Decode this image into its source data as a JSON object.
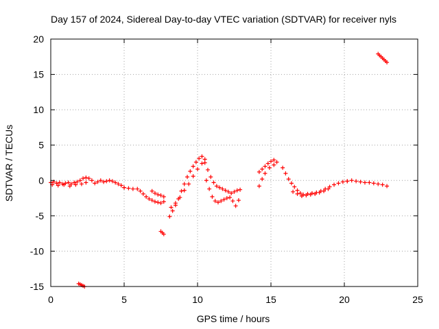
{
  "chart_data": {
    "type": "scatter",
    "title": "Day 157 of 2024, Sidereal Day-to-day VTEC variation (SDTVAR) for receiver nyls",
    "xlabel": "GPS time / hours",
    "ylabel": "SDTVAR / TECUs",
    "xlim": [
      0,
      25
    ],
    "ylim": [
      -15,
      20
    ],
    "xticks": [
      0,
      5,
      10,
      15,
      20,
      25
    ],
    "yticks": [
      -15,
      -10,
      -5,
      0,
      5,
      10,
      15,
      20
    ],
    "xtick_labels": [
      "0",
      "5",
      "10",
      "15",
      "20",
      "25"
    ],
    "ytick_labels": [
      "-15",
      "-10",
      "-5",
      "0",
      "5",
      "10",
      "15",
      "20"
    ],
    "grid": true,
    "marker": "plus",
    "color": "#ff0000",
    "series": [
      {
        "name": "seg-0-2.5",
        "x": [
          0.0,
          0.2,
          0.4,
          0.6,
          0.8,
          1.0,
          1.2,
          1.4,
          1.6,
          1.8,
          2.0,
          2.2,
          2.4
        ],
        "y": [
          -0.3,
          -0.2,
          -0.4,
          -0.3,
          -0.5,
          -0.4,
          -0.3,
          -0.5,
          -0.3,
          -0.2,
          0.0,
          0.3,
          0.4
        ]
      },
      {
        "name": "seg-0-2.5b",
        "x": [
          0.1,
          0.5,
          0.9,
          1.3,
          1.7,
          2.1,
          2.4
        ],
        "y": [
          -0.6,
          -0.7,
          -0.6,
          -0.8,
          -0.6,
          -0.5,
          -0.3
        ]
      },
      {
        "name": "seg-2.5-5",
        "x": [
          2.6,
          2.8,
          3.0,
          3.2,
          3.4,
          3.6,
          3.8,
          4.0,
          4.2,
          4.4,
          4.6,
          4.8,
          5.0
        ],
        "y": [
          0.3,
          0.0,
          -0.4,
          -0.2,
          0.0,
          -0.2,
          -0.1,
          0.0,
          -0.1,
          -0.3,
          -0.5,
          -0.7,
          -1.0
        ]
      },
      {
        "name": "seg-5-7.5",
        "x": [
          5.0,
          5.3,
          5.6,
          5.9,
          6.1,
          6.3,
          6.5,
          6.7,
          6.9,
          7.1,
          7.3,
          7.5,
          7.7
        ],
        "y": [
          -1.0,
          -1.1,
          -1.2,
          -1.2,
          -1.5,
          -1.9,
          -2.3,
          -2.6,
          -2.8,
          -3.0,
          -3.1,
          -3.2,
          -3.0
        ]
      },
      {
        "name": "seg-7-7.8",
        "x": [
          6.9,
          7.1,
          7.3,
          7.5,
          7.7
        ],
        "y": [
          -1.5,
          -1.8,
          -2.0,
          -2.1,
          -2.3
        ]
      },
      {
        "name": "seg-8-10.3-up",
        "x": [
          8.1,
          8.3,
          8.5,
          8.7,
          8.9,
          9.1,
          9.3,
          9.5,
          9.7,
          9.9,
          10.1,
          10.3,
          10.5
        ],
        "y": [
          -5.1,
          -4.3,
          -3.5,
          -2.6,
          -1.5,
          -0.5,
          0.5,
          1.3,
          2.0,
          2.6,
          3.1,
          3.4,
          3.0
        ]
      },
      {
        "name": "seg-8-10.3-up-b",
        "x": [
          8.2,
          8.5,
          8.8,
          9.1,
          9.4,
          9.7,
          10.0,
          10.3
        ],
        "y": [
          -3.8,
          -3.2,
          -2.4,
          -1.4,
          -0.5,
          0.6,
          1.6,
          2.4
        ]
      },
      {
        "name": "seg-10.3-13",
        "x": [
          10.5,
          10.7,
          10.9,
          11.1,
          11.3,
          11.5,
          11.7,
          11.9,
          12.1,
          12.3,
          12.5,
          12.7,
          12.9
        ],
        "y": [
          2.5,
          1.5,
          0.5,
          -0.3,
          -0.8,
          -1.0,
          -1.2,
          -1.4,
          -1.6,
          -1.8,
          -1.6,
          -1.4,
          -1.3
        ]
      },
      {
        "name": "seg-10.3-13-low",
        "x": [
          10.6,
          10.8,
          11.0,
          11.2,
          11.4,
          11.6,
          11.8,
          12.0,
          12.2,
          12.4,
          12.6,
          12.8
        ],
        "y": [
          0.0,
          -1.2,
          -2.3,
          -2.9,
          -3.1,
          -2.9,
          -2.7,
          -2.5,
          -2.4,
          -2.9,
          -3.6,
          -2.8
        ]
      },
      {
        "name": "seg-14-15.4",
        "x": [
          14.2,
          14.4,
          14.6,
          14.8,
          15.0,
          15.2,
          15.4
        ],
        "y": [
          1.2,
          1.6,
          2.0,
          2.4,
          2.7,
          2.9,
          2.6
        ]
      },
      {
        "name": "seg-14-15.4-b",
        "x": [
          14.2,
          14.4,
          14.6,
          14.9,
          15.2
        ],
        "y": [
          -0.8,
          0.2,
          1.0,
          1.8,
          2.2
        ]
      },
      {
        "name": "seg-15.8-20",
        "x": [
          15.8,
          16.0,
          16.2,
          16.4,
          16.6,
          16.8,
          17.0,
          17.2,
          17.5,
          17.8,
          18.1,
          18.4,
          18.7,
          19.0,
          19.3,
          19.6,
          19.9,
          20.2
        ],
        "y": [
          1.8,
          1.0,
          0.2,
          -0.4,
          -0.9,
          -1.4,
          -1.8,
          -2.0,
          -1.9,
          -1.8,
          -1.7,
          -1.5,
          -1.2,
          -0.9,
          -0.6,
          -0.4,
          -0.2,
          -0.1
        ]
      },
      {
        "name": "seg-16.5-19",
        "x": [
          16.5,
          16.8,
          17.1,
          17.4,
          17.7,
          18.0,
          18.3,
          18.6,
          18.9
        ],
        "y": [
          -1.6,
          -1.9,
          -2.2,
          -2.1,
          -2.0,
          -1.9,
          -1.7,
          -1.5,
          -1.2
        ]
      },
      {
        "name": "seg-20-23",
        "x": [
          20.2,
          20.5,
          20.8,
          21.1,
          21.4,
          21.7,
          22.0,
          22.3,
          22.6,
          22.9
        ],
        "y": [
          -0.1,
          0.0,
          -0.1,
          -0.2,
          -0.3,
          -0.3,
          -0.4,
          -0.5,
          -0.6,
          -0.8
        ]
      },
      {
        "name": "outlier-2h",
        "x": [
          1.9,
          2.0,
          2.1,
          2.2,
          2.3
        ],
        "y": [
          -14.6,
          -14.7,
          -14.8,
          -14.9,
          -15.0
        ]
      },
      {
        "name": "outlier-7.6h",
        "x": [
          7.5,
          7.6,
          7.7
        ],
        "y": [
          -7.2,
          -7.4,
          -7.6
        ]
      },
      {
        "name": "outlier-22.5h",
        "x": [
          22.3,
          22.4,
          22.5,
          22.6,
          22.7,
          22.8,
          22.9
        ],
        "y": [
          17.9,
          17.7,
          17.5,
          17.3,
          17.1,
          16.9,
          16.7
        ]
      }
    ]
  }
}
